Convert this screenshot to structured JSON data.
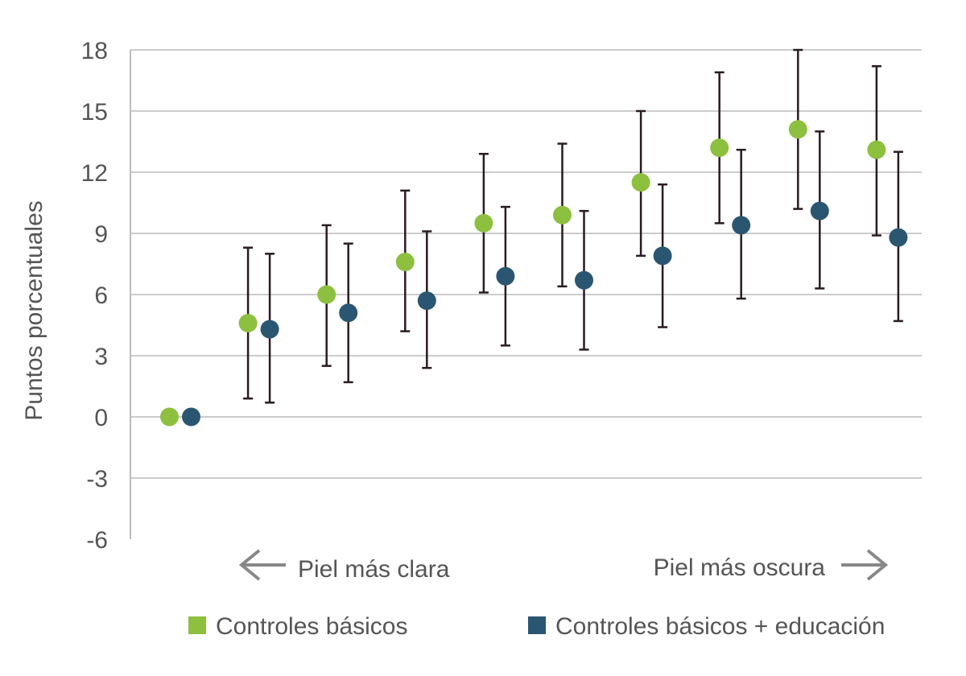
{
  "chart_data": {
    "type": "scatter",
    "ylabel": "Puntos porcentuales",
    "ylim": [
      -6,
      18
    ],
    "yticks": [
      "18",
      "15",
      "12",
      "9",
      "6",
      "3",
      "0",
      "-3",
      "-6"
    ],
    "ytick_values": [
      18,
      15,
      12,
      9,
      6,
      3,
      0,
      -3,
      -6
    ],
    "grid": true,
    "direction_labels": {
      "left": "Piel más clara",
      "right": "Piel más oscura"
    },
    "categories_count": 10,
    "series": [
      {
        "name": "Controles básicos",
        "color": "#8dc03f",
        "values": [
          0,
          4.6,
          6.0,
          7.6,
          9.5,
          9.9,
          11.5,
          13.2,
          14.1,
          13.1
        ],
        "ci_low": [
          null,
          0.9,
          2.5,
          4.2,
          6.1,
          6.4,
          7.9,
          9.5,
          10.2,
          8.9
        ],
        "ci_high": [
          null,
          8.3,
          9.4,
          11.1,
          12.9,
          13.4,
          15.0,
          16.9,
          18.0,
          17.2
        ]
      },
      {
        "name": "Controles básicos + educación",
        "color": "#2b5672",
        "values": [
          0,
          4.3,
          5.1,
          5.7,
          6.9,
          6.7,
          7.9,
          9.4,
          10.1,
          8.8
        ],
        "ci_low": [
          null,
          0.7,
          1.7,
          2.4,
          3.5,
          3.3,
          4.4,
          5.8,
          6.3,
          4.7
        ],
        "ci_high": [
          null,
          8.0,
          8.5,
          9.1,
          10.3,
          10.1,
          11.4,
          13.1,
          14.0,
          13.0
        ]
      }
    ],
    "legend_position": "bottom"
  },
  "colors": {
    "grid": "#cccccc",
    "error_bar": "#2a1a22",
    "text": "#555555",
    "arrow": "#888888"
  }
}
